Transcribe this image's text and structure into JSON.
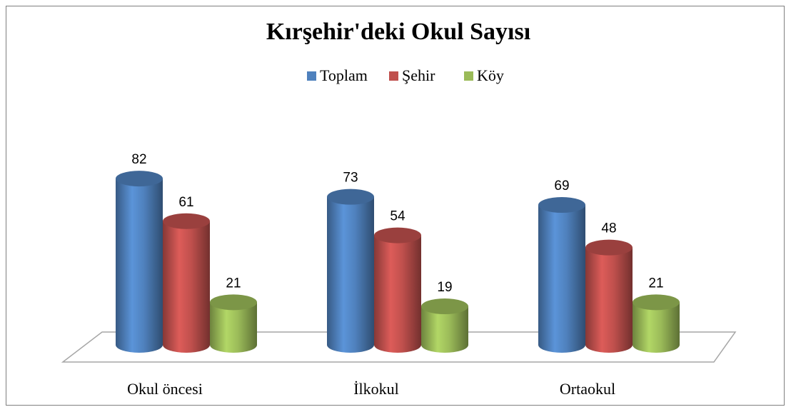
{
  "chart_data": {
    "type": "bar",
    "title": "Kırşehir'deki Okul Sayısı",
    "categories": [
      "Okul öncesi",
      "İlkokul",
      "Ortaokul"
    ],
    "series": [
      {
        "name": "Toplam",
        "color": "#4f81bd",
        "values": [
          82,
          73,
          69
        ]
      },
      {
        "name": "Şehir",
        "color": "#c0504d",
        "values": [
          61,
          54,
          48
        ]
      },
      {
        "name": "Köy",
        "color": "#9bbb59",
        "values": [
          21,
          19,
          21
        ]
      }
    ],
    "legend": "top"
  }
}
